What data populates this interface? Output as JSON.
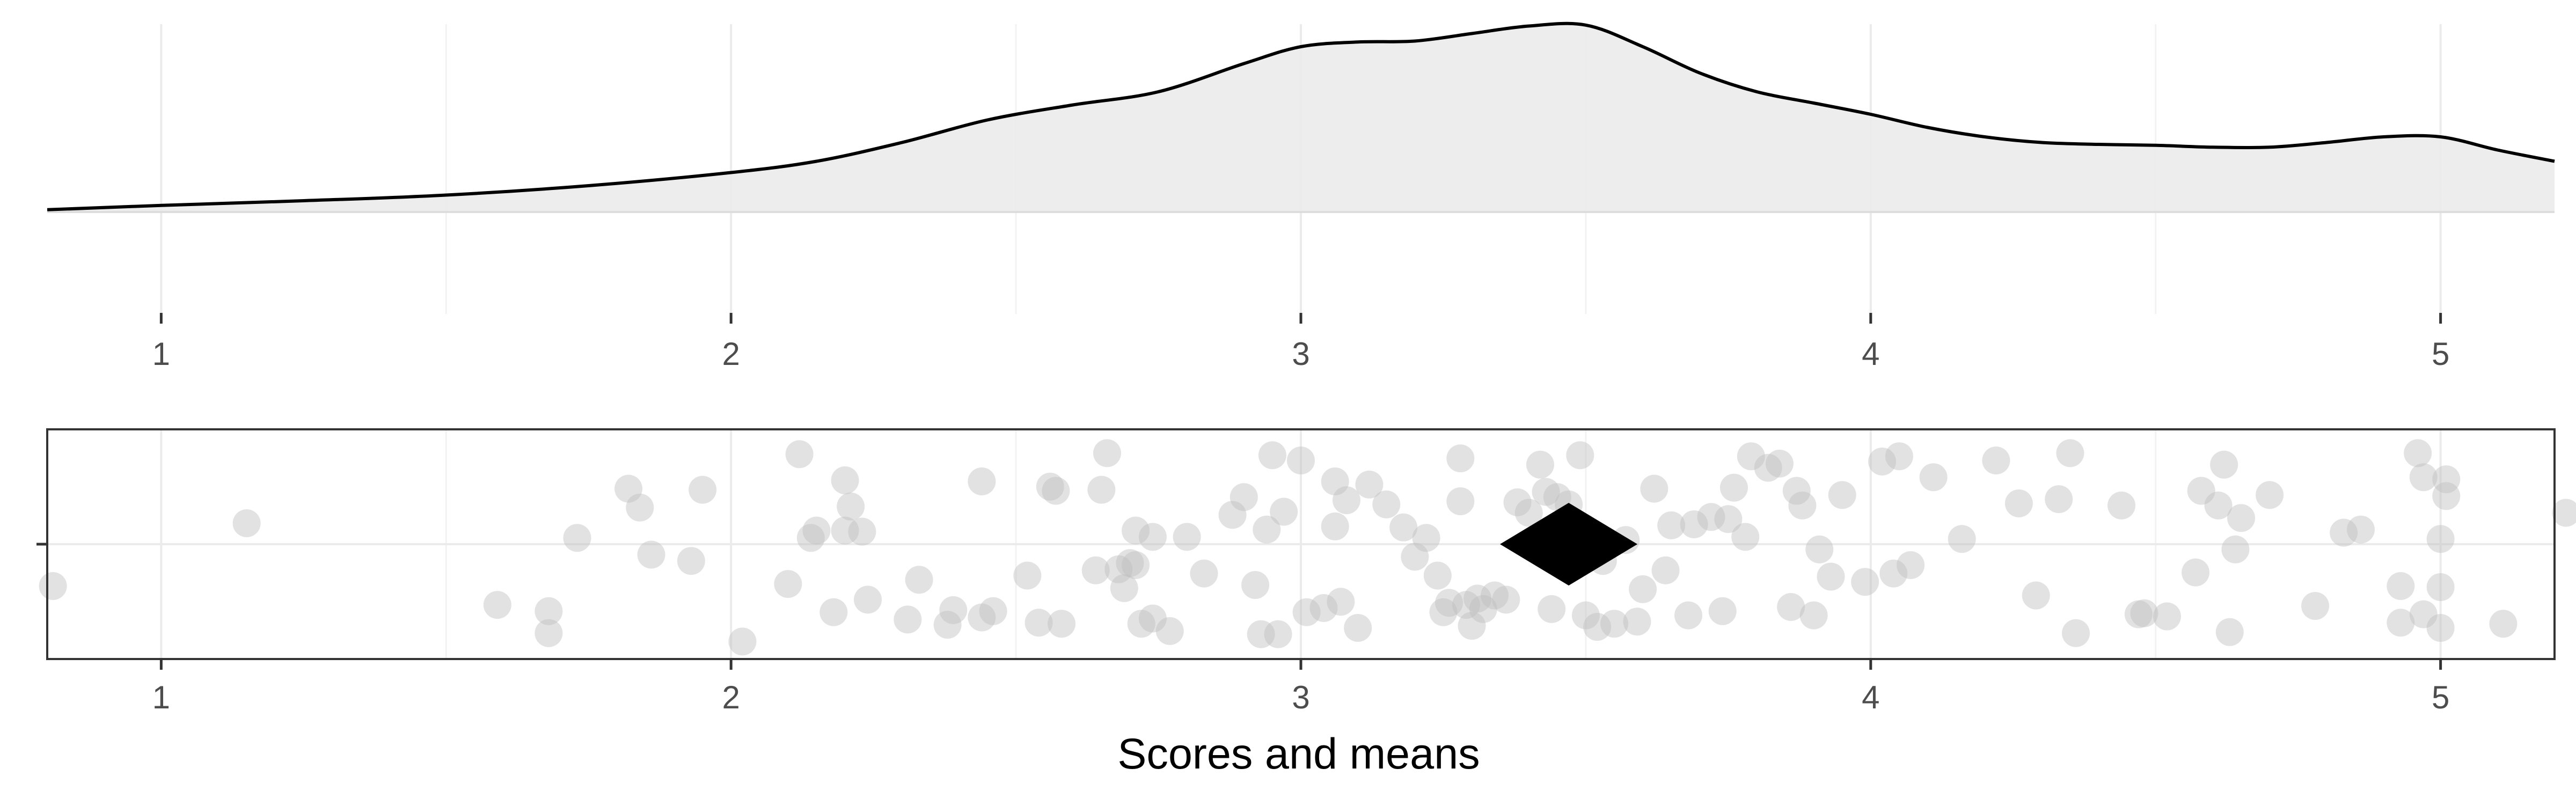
{
  "chart_data": [
    {
      "type": "area",
      "panel": "density",
      "xlim": [
        0.8,
        5.2
      ],
      "x_ticks": [
        1,
        2,
        3,
        4,
        5
      ],
      "grid": true,
      "colors": {
        "fill": "#ebebeb",
        "line": "#000000",
        "grid": "#ebebeb"
      },
      "density": {
        "x": [
          0.8,
          1.0,
          1.25,
          1.5,
          1.75,
          2.0,
          2.15,
          2.3,
          2.45,
          2.6,
          2.75,
          2.9,
          3.0,
          3.1,
          3.2,
          3.3,
          3.4,
          3.5,
          3.6,
          3.7,
          3.8,
          3.9,
          4.0,
          4.1,
          4.2,
          4.3,
          4.4,
          4.5,
          4.6,
          4.7,
          4.8,
          4.9,
          5.0,
          5.1,
          5.2
        ],
        "y": [
          0.012,
          0.035,
          0.06,
          0.09,
          0.14,
          0.21,
          0.27,
          0.37,
          0.49,
          0.57,
          0.64,
          0.79,
          0.88,
          0.905,
          0.91,
          0.95,
          0.99,
          0.995,
          0.88,
          0.74,
          0.64,
          0.58,
          0.52,
          0.45,
          0.4,
          0.37,
          0.36,
          0.355,
          0.345,
          0.345,
          0.37,
          0.4,
          0.4,
          0.33,
          0.27
        ]
      }
    },
    {
      "type": "scatter",
      "panel": "jitter",
      "xlabel": "Scores and means",
      "xlim": [
        0.8,
        5.2
      ],
      "x_ticks": [
        1,
        2,
        3,
        4,
        5
      ],
      "grid": true,
      "colors": {
        "point": "#bfbfbf",
        "mean": "#000000",
        "border": "#333333"
      },
      "mean": 3.47,
      "points": [
        [
          0.81,
          -0.4
        ],
        [
          1.15,
          0.2
        ],
        [
          1.59,
          -0.58
        ],
        [
          1.68,
          -0.64
        ],
        [
          1.68,
          -0.85
        ],
        [
          1.73,
          0.06
        ],
        [
          1.82,
          0.53
        ],
        [
          1.84,
          0.35
        ],
        [
          1.86,
          -0.1
        ],
        [
          1.93,
          -0.16
        ],
        [
          1.95,
          0.52
        ],
        [
          2.02,
          -0.93
        ],
        [
          2.1,
          -0.38
        ],
        [
          2.12,
          0.86
        ],
        [
          2.14,
          0.06
        ],
        [
          2.15,
          0.13
        ],
        [
          2.18,
          -0.65
        ],
        [
          2.2,
          0.13
        ],
        [
          2.2,
          0.61
        ],
        [
          2.21,
          0.36
        ],
        [
          2.23,
          0.12
        ],
        [
          2.24,
          -0.53
        ],
        [
          2.31,
          -0.72
        ],
        [
          2.33,
          -0.34
        ],
        [
          2.38,
          -0.77
        ],
        [
          2.39,
          -0.63
        ],
        [
          2.44,
          -0.7
        ],
        [
          2.44,
          0.6
        ],
        [
          2.46,
          -0.64
        ],
        [
          2.52,
          -0.3
        ],
        [
          2.54,
          -0.75
        ],
        [
          2.56,
          0.55
        ],
        [
          2.57,
          0.51
        ],
        [
          2.58,
          -0.76
        ],
        [
          2.64,
          -0.25
        ],
        [
          2.65,
          0.52
        ],
        [
          2.66,
          0.87
        ],
        [
          2.68,
          -0.24
        ],
        [
          2.69,
          -0.42
        ],
        [
          2.7,
          -0.18
        ],
        [
          2.71,
          0.13
        ],
        [
          2.71,
          -0.2
        ],
        [
          2.72,
          -0.76
        ],
        [
          2.74,
          0.07
        ],
        [
          2.74,
          -0.71
        ],
        [
          2.77,
          -0.83
        ],
        [
          2.8,
          0.07
        ],
        [
          2.83,
          -0.28
        ],
        [
          2.88,
          0.28
        ],
        [
          2.9,
          0.45
        ],
        [
          2.92,
          -0.39
        ],
        [
          2.93,
          -0.86
        ],
        [
          2.94,
          0.14
        ],
        [
          2.95,
          0.85
        ],
        [
          2.96,
          -0.86
        ],
        [
          2.97,
          0.31
        ],
        [
          3.0,
          0.8
        ],
        [
          3.01,
          -0.65
        ],
        [
          3.04,
          -0.61
        ],
        [
          3.06,
          0.6
        ],
        [
          3.06,
          0.17
        ],
        [
          3.07,
          -0.55
        ],
        [
          3.08,
          0.42
        ],
        [
          3.1,
          -0.8
        ],
        [
          3.12,
          0.57
        ],
        [
          3.15,
          0.38
        ],
        [
          3.18,
          0.16
        ],
        [
          3.2,
          -0.12
        ],
        [
          3.22,
          0.06
        ],
        [
          3.24,
          -0.3
        ],
        [
          3.25,
          -0.65
        ],
        [
          3.26,
          -0.56
        ],
        [
          3.28,
          0.82
        ],
        [
          3.28,
          0.41
        ],
        [
          3.29,
          -0.58
        ],
        [
          3.3,
          -0.78
        ],
        [
          3.31,
          -0.52
        ],
        [
          3.32,
          -0.62
        ],
        [
          3.34,
          -0.49
        ],
        [
          3.36,
          -0.53
        ],
        [
          3.38,
          0.4
        ],
        [
          3.4,
          0.3
        ],
        [
          3.42,
          0.76
        ],
        [
          3.43,
          0.5
        ],
        [
          3.44,
          -0.62
        ],
        [
          3.45,
          0.45
        ],
        [
          3.47,
          0.38
        ],
        [
          3.48,
          -0.2
        ],
        [
          3.49,
          0.85
        ],
        [
          3.5,
          -0.68
        ],
        [
          3.51,
          0.05
        ],
        [
          3.52,
          -0.79
        ],
        [
          3.53,
          -0.16
        ],
        [
          3.55,
          -0.76
        ],
        [
          3.57,
          0.04
        ],
        [
          3.59,
          -0.74
        ],
        [
          3.6,
          -0.43
        ],
        [
          3.62,
          0.53
        ],
        [
          3.64,
          -0.25
        ],
        [
          3.65,
          0.18
        ],
        [
          3.68,
          -0.68
        ],
        [
          3.69,
          0.19
        ],
        [
          3.72,
          0.26
        ],
        [
          3.74,
          -0.64
        ],
        [
          3.75,
          0.24
        ],
        [
          3.76,
          0.54
        ],
        [
          3.78,
          0.07
        ],
        [
          3.79,
          0.84
        ],
        [
          3.82,
          0.73
        ],
        [
          3.84,
          0.77
        ],
        [
          3.86,
          -0.6
        ],
        [
          3.87,
          0.51
        ],
        [
          3.88,
          0.37
        ],
        [
          3.9,
          -0.68
        ],
        [
          3.91,
          -0.05
        ],
        [
          3.93,
          -0.31
        ],
        [
          3.95,
          0.47
        ],
        [
          3.99,
          -0.36
        ],
        [
          4.02,
          0.79
        ],
        [
          4.04,
          -0.28
        ],
        [
          4.05,
          0.84
        ],
        [
          4.07,
          -0.2
        ],
        [
          4.11,
          0.64
        ],
        [
          4.16,
          0.05
        ],
        [
          4.22,
          0.8
        ],
        [
          4.26,
          0.39
        ],
        [
          4.29,
          -0.49
        ],
        [
          4.33,
          0.43
        ],
        [
          4.35,
          0.87
        ],
        [
          4.36,
          -0.85
        ],
        [
          4.44,
          0.37
        ],
        [
          4.47,
          -0.67
        ],
        [
          4.48,
          -0.66
        ],
        [
          4.52,
          -0.69
        ],
        [
          4.57,
          -0.27
        ],
        [
          4.58,
          0.51
        ],
        [
          4.61,
          0.37
        ],
        [
          4.62,
          0.76
        ],
        [
          4.63,
          -0.84
        ],
        [
          4.64,
          -0.05
        ],
        [
          4.65,
          0.25
        ],
        [
          4.7,
          0.47
        ],
        [
          4.78,
          -0.59
        ],
        [
          4.83,
          0.11
        ],
        [
          4.86,
          0.14
        ],
        [
          4.93,
          -0.4
        ],
        [
          4.93,
          -0.75
        ],
        [
          4.96,
          0.87
        ],
        [
          4.97,
          -0.67
        ],
        [
          4.97,
          0.64
        ],
        [
          5.0,
          0.05
        ],
        [
          5.0,
          -0.41
        ],
        [
          5.0,
          -0.8
        ],
        [
          5.01,
          0.46
        ],
        [
          5.01,
          0.62
        ],
        [
          5.11,
          -0.76
        ],
        [
          5.22,
          0.3
        ]
      ]
    }
  ]
}
